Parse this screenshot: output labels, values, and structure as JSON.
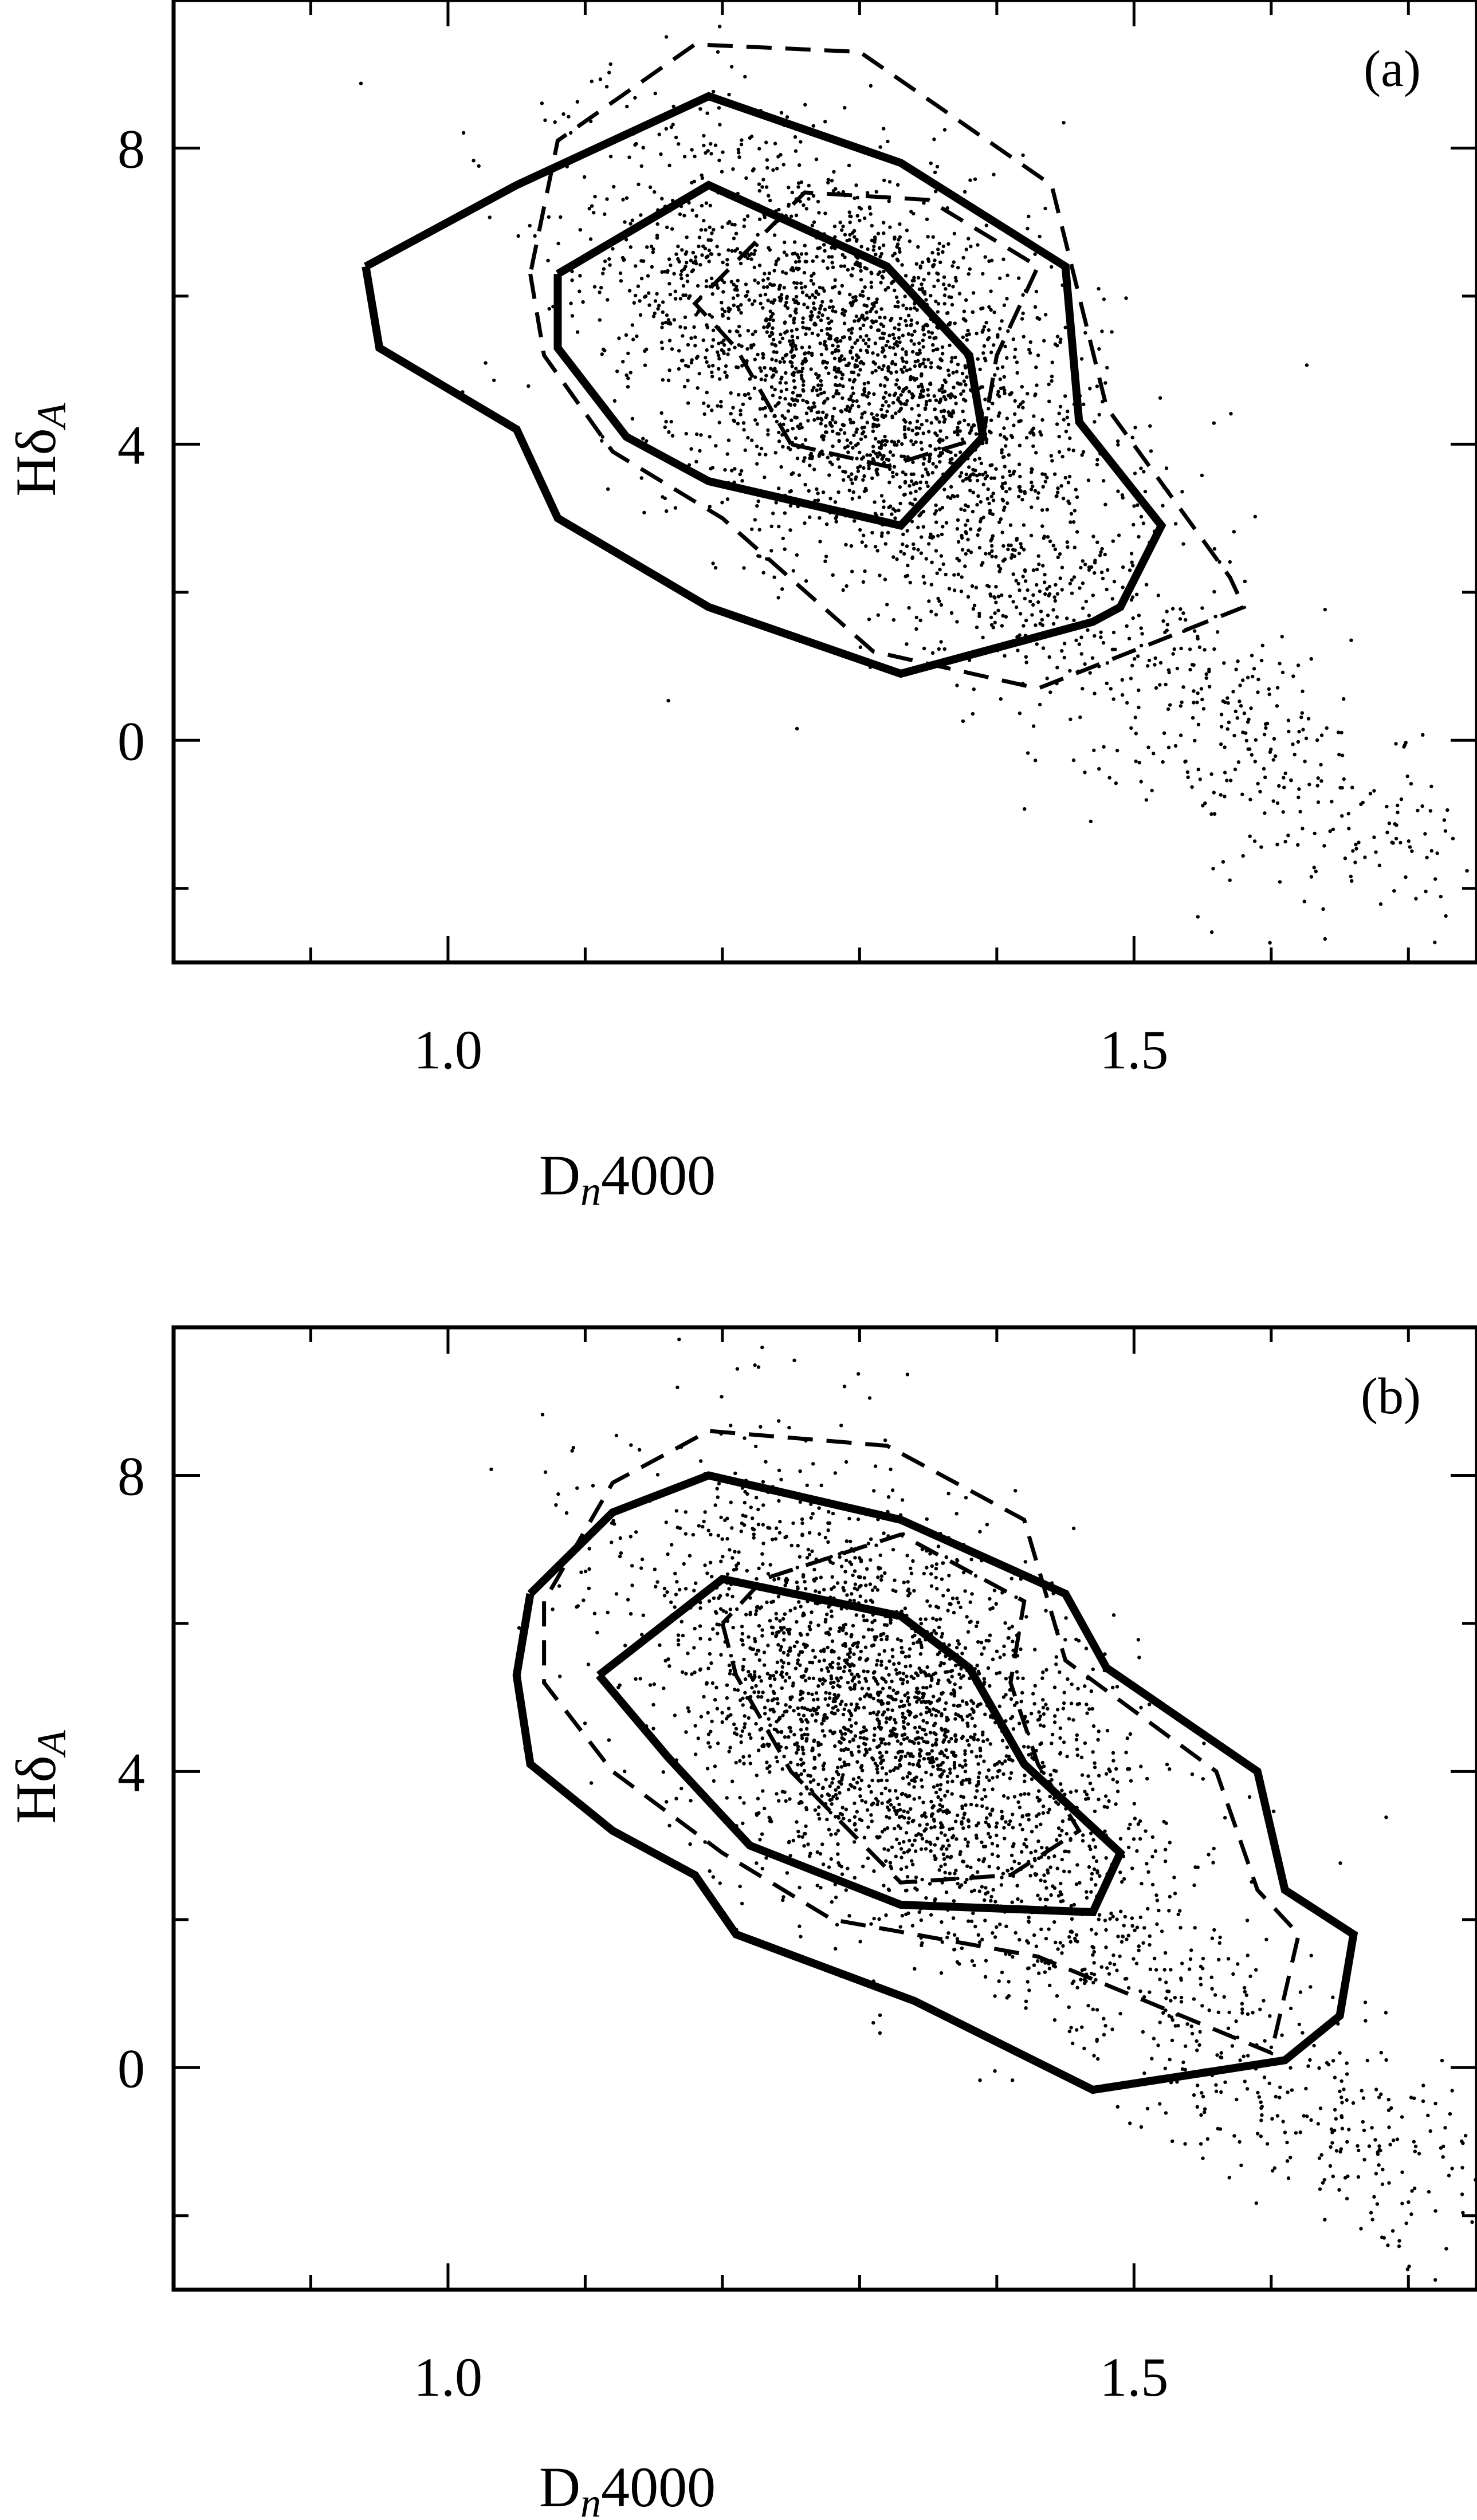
{
  "chart_data": [
    {
      "type": "scatter",
      "panel_label": "(a)",
      "xlabel_main": "D",
      "xlabel_sub": "n",
      "xlabel_rest": "4000",
      "ylabel_main": "Hδ",
      "ylabel_sub": "A",
      "xlim": [
        0.8,
        1.75
      ],
      "ylim": [
        -3,
        10
      ],
      "x_ticks": [
        1.0,
        1.5
      ],
      "x_tick_labels": [
        "1.0",
        "1.5"
      ],
      "y_ticks": [
        0,
        4,
        8
      ],
      "y_tick_labels": [
        "0",
        "4",
        "8"
      ],
      "scatter_cloud": {
        "center_x": 1.3,
        "center_y": 5.0,
        "spread_x": 0.09,
        "spread_y": 1.6,
        "n_core": 2600,
        "tail_to_x": 1.7,
        "tail_to_y": -1.6
      },
      "contours": [
        {
          "style": "solid",
          "level": "outer",
          "points": [
            [
              0.94,
              6.4
            ],
            [
              0.95,
              5.3
            ],
            [
              1.05,
              4.2
            ],
            [
              1.08,
              3.0
            ],
            [
              1.19,
              1.8
            ],
            [
              1.33,
              0.9
            ],
            [
              1.47,
              1.6
            ],
            [
              1.49,
              1.8
            ],
            [
              1.52,
              2.9
            ],
            [
              1.46,
              4.3
            ],
            [
              1.45,
              6.4
            ],
            [
              1.33,
              7.8
            ],
            [
              1.19,
              8.7
            ],
            [
              1.05,
              7.5
            ],
            [
              0.94,
              6.4
            ]
          ]
        },
        {
          "style": "solid",
          "level": "inner",
          "points": [
            [
              1.08,
              6.3
            ],
            [
              1.08,
              5.3
            ],
            [
              1.13,
              4.1
            ],
            [
              1.19,
              3.5
            ],
            [
              1.33,
              2.9
            ],
            [
              1.39,
              4.1
            ],
            [
              1.38,
              5.2
            ],
            [
              1.32,
              6.4
            ],
            [
              1.19,
              7.5
            ],
            [
              1.08,
              6.3
            ]
          ]
        },
        {
          "style": "dashed",
          "level": "outer",
          "points": [
            [
              1.06,
              6.3
            ],
            [
              1.07,
              5.2
            ],
            [
              1.12,
              3.9
            ],
            [
              1.2,
              3.0
            ],
            [
              1.31,
              1.2
            ],
            [
              1.43,
              0.7
            ],
            [
              1.58,
              1.8
            ],
            [
              1.57,
              2.2
            ],
            [
              1.48,
              4.5
            ],
            [
              1.44,
              7.5
            ],
            [
              1.3,
              9.3
            ],
            [
              1.18,
              9.4
            ],
            [
              1.08,
              8.1
            ],
            [
              1.06,
              6.3
            ]
          ]
        },
        {
          "style": "dashed",
          "level": "inner",
          "points": [
            [
              1.25,
              4.0
            ],
            [
              1.32,
              3.7
            ],
            [
              1.39,
              4.1
            ],
            [
              1.4,
              5.2
            ],
            [
              1.43,
              6.4
            ],
            [
              1.35,
              7.3
            ],
            [
              1.26,
              7.4
            ],
            [
              1.18,
              5.9
            ],
            [
              1.21,
              5.3
            ],
            [
              1.25,
              4.0
            ]
          ]
        }
      ]
    },
    {
      "type": "scatter",
      "panel_label": "(b)",
      "xlabel_main": "D",
      "xlabel_sub": "n",
      "xlabel_rest": "4000",
      "ylabel_main": "Hδ",
      "ylabel_sub": "A",
      "xlim": [
        0.8,
        1.75
      ],
      "ylim": [
        -3,
        10
      ],
      "x_ticks": [
        1.0,
        1.5
      ],
      "x_tick_labels": [
        "1.0",
        "1.5"
      ],
      "y_ticks": [
        0,
        4,
        8
      ],
      "y_tick_labels": [
        "0",
        "4",
        "8"
      ],
      "scatter_cloud": {
        "center_x": 1.32,
        "center_y": 4.7,
        "spread_x": 0.09,
        "spread_y": 1.6,
        "n_core": 2600,
        "tail_to_x": 1.72,
        "tail_to_y": -1.8
      },
      "contours": [
        {
          "style": "solid",
          "level": "outer",
          "points": [
            [
              1.06,
              6.4
            ],
            [
              1.05,
              5.3
            ],
            [
              1.06,
              4.1
            ],
            [
              1.12,
              3.2
            ],
            [
              1.18,
              2.6
            ],
            [
              1.21,
              1.8
            ],
            [
              1.34,
              0.9
            ],
            [
              1.47,
              -0.3
            ],
            [
              1.61,
              0.1
            ],
            [
              1.65,
              0.7
            ],
            [
              1.66,
              1.8
            ],
            [
              1.61,
              2.4
            ],
            [
              1.59,
              4.0
            ],
            [
              1.48,
              5.4
            ],
            [
              1.45,
              6.4
            ],
            [
              1.33,
              7.4
            ],
            [
              1.19,
              8.0
            ],
            [
              1.12,
              7.5
            ],
            [
              1.06,
              6.4
            ]
          ]
        },
        {
          "style": "solid",
          "level": "inner",
          "points": [
            [
              1.11,
              5.3
            ],
            [
              1.16,
              4.2
            ],
            [
              1.22,
              3.0
            ],
            [
              1.33,
              2.2
            ],
            [
              1.47,
              2.1
            ],
            [
              1.49,
              2.9
            ],
            [
              1.42,
              4.1
            ],
            [
              1.38,
              5.4
            ],
            [
              1.33,
              6.1
            ],
            [
              1.2,
              6.6
            ],
            [
              1.11,
              5.3
            ]
          ]
        },
        {
          "style": "dashed",
          "level": "outer",
          "points": [
            [
              1.07,
              6.3
            ],
            [
              1.07,
              5.2
            ],
            [
              1.12,
              4.0
            ],
            [
              1.2,
              2.9
            ],
            [
              1.28,
              2.0
            ],
            [
              1.43,
              1.5
            ],
            [
              1.6,
              0.2
            ],
            [
              1.62,
              1.8
            ],
            [
              1.59,
              2.4
            ],
            [
              1.56,
              4.0
            ],
            [
              1.45,
              5.5
            ],
            [
              1.42,
              7.4
            ],
            [
              1.32,
              8.4
            ],
            [
              1.19,
              8.6
            ],
            [
              1.12,
              7.9
            ],
            [
              1.07,
              6.3
            ]
          ]
        },
        {
          "style": "dashed",
          "level": "inner",
          "points": [
            [
              1.2,
              6.0
            ],
            [
              1.21,
              5.3
            ],
            [
              1.25,
              4.0
            ],
            [
              1.33,
              2.5
            ],
            [
              1.41,
              2.6
            ],
            [
              1.46,
              3.2
            ],
            [
              1.43,
              4.1
            ],
            [
              1.41,
              5.2
            ],
            [
              1.42,
              6.3
            ],
            [
              1.33,
              7.2
            ],
            [
              1.23,
              6.6
            ],
            [
              1.2,
              6.0
            ]
          ]
        }
      ]
    }
  ]
}
